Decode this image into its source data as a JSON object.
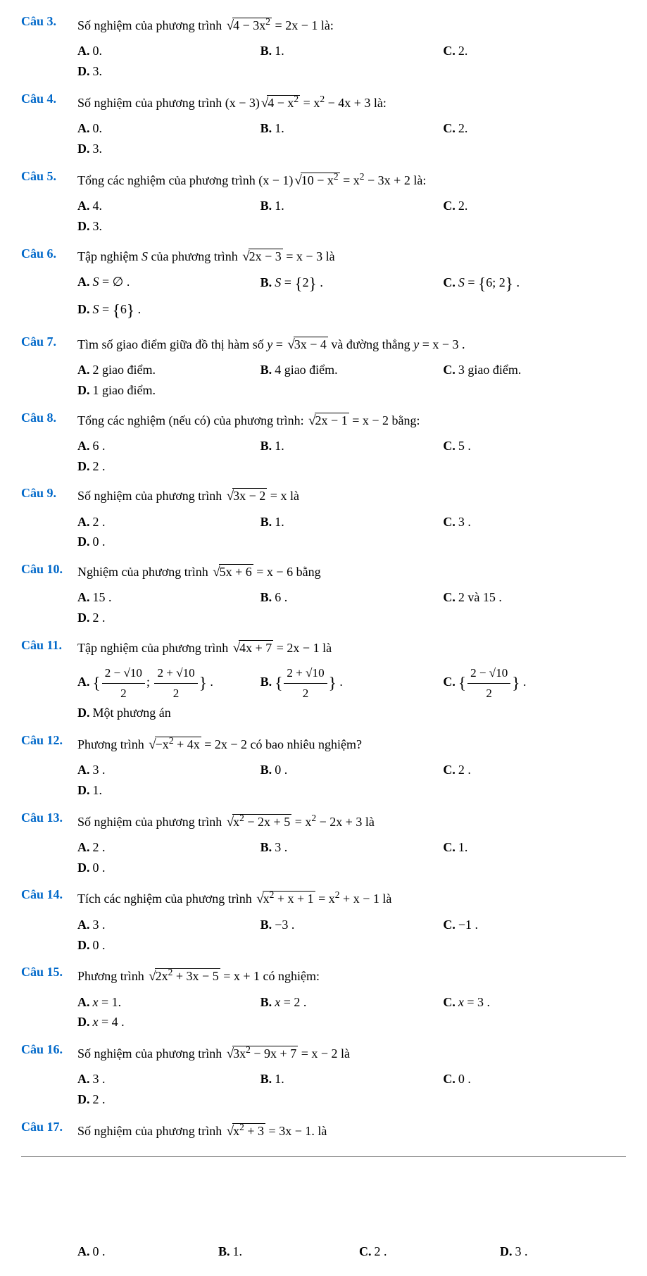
{
  "questions": [
    {
      "num": "Câu 3.",
      "text_parts": [
        "Số nghiệm của phương trình ",
        {
          "sqrt": "4 − 3x<sup>2</sup>"
        },
        " = 2x − 1 là:"
      ],
      "choices": [
        {
          "l": "A.",
          "v": "0."
        },
        {
          "l": "B.",
          "v": "1."
        },
        {
          "l": "C.",
          "v": "2."
        },
        {
          "l": "D.",
          "v": "3."
        }
      ]
    },
    {
      "num": "Câu 4.",
      "text_parts": [
        "Số nghiệm của phương trình (x − 3)",
        {
          "sqrt": "4 − x<sup>2</sup>"
        },
        " = x<sup>2</sup> − 4x + 3 là:"
      ],
      "choices": [
        {
          "l": "A.",
          "v": "0."
        },
        {
          "l": "B.",
          "v": "1."
        },
        {
          "l": "C.",
          "v": "2."
        },
        {
          "l": "D.",
          "v": "3."
        }
      ]
    },
    {
      "num": "Câu 5.",
      "text_parts": [
        "Tổng các nghiệm của phương trình (x − 1)",
        {
          "sqrt": "10 − x<sup>2</sup>"
        },
        " = x<sup>2</sup> − 3x + 2 là:"
      ],
      "choices": [
        {
          "l": "A.",
          "v": "4."
        },
        {
          "l": "B.",
          "v": "1."
        },
        {
          "l": "C.",
          "v": "2."
        },
        {
          "l": "D.",
          "v": "3."
        }
      ]
    },
    {
      "num": "Câu 6.",
      "text_parts": [
        "Tập nghiệm <i>S</i> của phương trình ",
        {
          "sqrt": "2x − 3"
        },
        " = x − 3  là"
      ],
      "choices": [
        {
          "l": "A.",
          "v": "<i>S</i> = ∅ ."
        },
        {
          "l": "B.",
          "v": "<i>S</i> = <span class='set'>{</span>2<span class='set'>}</span> ."
        },
        {
          "l": "C.",
          "v": "<i>S</i> = <span class='set'>{</span>6; 2<span class='set'>}</span> ."
        },
        {
          "l": "D.",
          "v": "<i>S</i> = <span class='set'>{</span>6<span class='set'>}</span> ."
        }
      ]
    },
    {
      "num": "Câu 7.",
      "text_parts": [
        "Tìm số giao điểm giữa đồ thị hàm số  <i>y</i> = ",
        {
          "sqrt": "3x − 4"
        },
        "  và đường thẳng  <i>y</i> = x − 3 ."
      ],
      "choices": [
        {
          "l": "A.",
          "v": "2  giao điểm."
        },
        {
          "l": "B.",
          "v": "4  giao điểm."
        },
        {
          "l": "C.",
          "v": "3  giao điểm."
        },
        {
          "l": "D.",
          "v": "1 giao điểm."
        }
      ]
    },
    {
      "num": "Câu 8.",
      "text_parts": [
        "Tổng các nghiệm (nếu có) của phương trình: ",
        {
          "sqrt": "2x − 1"
        },
        " = x − 2  bằng:"
      ],
      "choices": [
        {
          "l": "A.",
          "v": "6 ."
        },
        {
          "l": "B.",
          "v": "1."
        },
        {
          "l": "C.",
          "v": "5 ."
        },
        {
          "l": "D.",
          "v": "2 ."
        }
      ]
    },
    {
      "num": "Câu 9.",
      "text_parts": [
        "Số nghiệm của phương trình ",
        {
          "sqrt": "3x − 2"
        },
        " = x  là"
      ],
      "choices": [
        {
          "l": "A.",
          "v": "2 ."
        },
        {
          "l": "B.",
          "v": "1."
        },
        {
          "l": "C.",
          "v": "3 ."
        },
        {
          "l": "D.",
          "v": "0 ."
        }
      ]
    },
    {
      "num": "Câu 10.",
      "text_parts": [
        "Nghiệm của phương trình ",
        {
          "sqrt": "5x + 6"
        },
        " = x − 6 bằng"
      ],
      "choices": [
        {
          "l": "A.",
          "v": "15 ."
        },
        {
          "l": "B.",
          "v": "6 ."
        },
        {
          "l": "C.",
          "v": "2  và 15 ."
        },
        {
          "l": "D.",
          "v": "2 ."
        }
      ]
    },
    {
      "num": "Câu 11.",
      "text_parts": [
        "Tập nghiệm của phương trình ",
        {
          "sqrt": "4x + 7"
        },
        " = 2x − 1 là"
      ],
      "choices": [
        {
          "l": "A.",
          "v": "<span class='set'>{</span><span class='frac'><span class='num'>2 − √10</span><span class='den'>2</span></span>; <span class='frac'><span class='num'>2 + √10</span><span class='den'>2</span></span><span class='set'>}</span> ."
        },
        {
          "l": "B.",
          "v": "<span class='set'>{</span><span class='frac'><span class='num'>2 + √10</span><span class='den'>2</span></span><span class='set'>}</span> ."
        },
        {
          "l": "C.",
          "v": "<span class='set'>{</span><span class='frac'><span class='num'>2 − √10</span><span class='den'>2</span></span><span class='set'>}</span> ."
        },
        {
          "l": "D.",
          "v": "Một phương án"
        }
      ]
    },
    {
      "num": "Câu 12.",
      "text_parts": [
        "Phương trình ",
        {
          "sqrt": "−x<sup>2</sup> + 4x"
        },
        " = 2x − 2  có bao nhiêu nghiệm?"
      ],
      "choices": [
        {
          "l": "A.",
          "v": "3 ."
        },
        {
          "l": "B.",
          "v": "0 ."
        },
        {
          "l": "C.",
          "v": "2 ."
        },
        {
          "l": "D.",
          "v": "1."
        }
      ]
    },
    {
      "num": "Câu 13.",
      "text_parts": [
        "Số nghiệm của phương trình ",
        {
          "sqrt": "x<sup>2</sup> − 2x + 5"
        },
        " = x<sup>2</sup> − 2x + 3 là"
      ],
      "choices": [
        {
          "l": "A.",
          "v": "2 ."
        },
        {
          "l": "B.",
          "v": "3 ."
        },
        {
          "l": "C.",
          "v": "1."
        },
        {
          "l": "D.",
          "v": "0 ."
        }
      ]
    },
    {
      "num": "Câu 14.",
      "text_parts": [
        "Tích các nghiệm của phương trình ",
        {
          "sqrt": "x<sup>2</sup> + x + 1"
        },
        " = x<sup>2</sup> + x − 1  là"
      ],
      "choices": [
        {
          "l": "A.",
          "v": "3 ."
        },
        {
          "l": "B.",
          "v": "−3 ."
        },
        {
          "l": "C.",
          "v": "−1 ."
        },
        {
          "l": "D.",
          "v": "0 ."
        }
      ]
    },
    {
      "num": "Câu 15.",
      "text_parts": [
        "Phương trình ",
        {
          "sqrt": "2x<sup>2</sup> + 3x − 5"
        },
        " = x + 1 có nghiệm:"
      ],
      "choices": [
        {
          "l": "A.",
          "v": "<i>x</i> = 1."
        },
        {
          "l": "B.",
          "v": "<i>x</i> = 2 ."
        },
        {
          "l": "C.",
          "v": "<i>x</i> = 3 ."
        },
        {
          "l": "D.",
          "v": "<i>x</i> = 4 ."
        }
      ]
    },
    {
      "num": "Câu 16.",
      "text_parts": [
        "Số nghiệm của phương trình ",
        {
          "sqrt": "3x<sup>2</sup> − 9x + 7"
        },
        " = x − 2  là"
      ],
      "choices": [
        {
          "l": "A.",
          "v": "3 ."
        },
        {
          "l": "B.",
          "v": "1."
        },
        {
          "l": "C.",
          "v": "0 ."
        },
        {
          "l": "D.",
          "v": "2 ."
        }
      ]
    },
    {
      "num": "Câu 17.",
      "text_parts": [
        "Số nghiệm của phương trình ",
        {
          "sqrt": "x<sup>2</sup> + 3"
        },
        " = 3x − 1. là"
      ],
      "choices": []
    }
  ],
  "bottom_choices": [
    {
      "l": "A.",
      "v": "0 ."
    },
    {
      "l": "B.",
      "v": "1."
    },
    {
      "l": "C.",
      "v": "2 ."
    },
    {
      "l": "D.",
      "v": "3 ."
    }
  ]
}
